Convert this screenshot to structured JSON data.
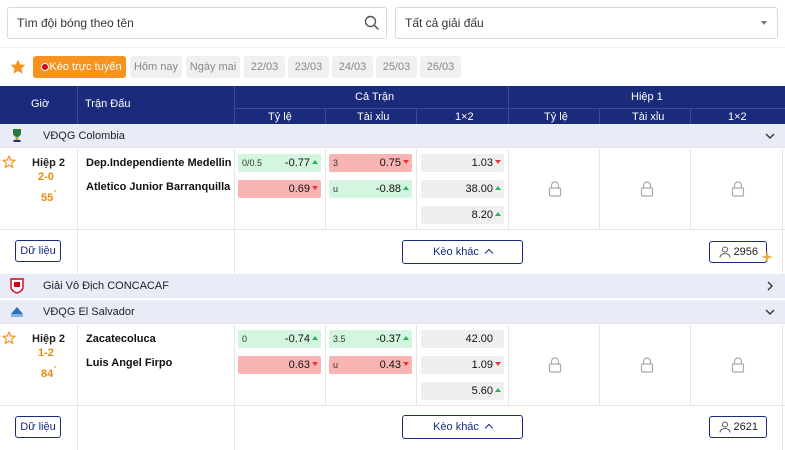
{
  "search": {
    "placeholder": "Tìm đội bóng theo tên"
  },
  "league_select": {
    "value": "Tất cả giải đấu"
  },
  "filters": {
    "live": "Kèo trực tuyến",
    "today": "Hôm nay",
    "tomorrow": "Ngày mai",
    "dates": [
      "22/03",
      "23/03",
      "24/03",
      "25/03",
      "26/03"
    ]
  },
  "header": {
    "time": "Giờ",
    "match": "Trận Đấu",
    "full": "Cả Trận",
    "half": "Hiệp 1",
    "handicap": "Tỷ lệ",
    "overunder": "Tài xỉu",
    "x12": "1×2"
  },
  "leagues": [
    {
      "name": "VĐQG Colombia"
    },
    {
      "name": "Giải Vô Địch CONCACAF"
    },
    {
      "name": "VĐQG El Salvador"
    }
  ],
  "matches": [
    {
      "period": "Hiệp 2",
      "score": "2-0",
      "minute": "55",
      "minute_mark": "'",
      "home": "Dep.Independiente Medellin",
      "away": "Atletico Junior Barranquilla",
      "hdp_line": "0/0.5",
      "hdp_home": "-0.77",
      "hdp_away": "0.69",
      "ou_line": "3",
      "ou_over": "0.75",
      "ou_under_label": "u",
      "ou_under": "-0.88",
      "x12_home": "1.03",
      "x12_away": "38.00",
      "x12_draw": "8.20",
      "data_btn": "Dữ liệu",
      "more_btn": "Kèo khác",
      "viewers": "2956"
    },
    {
      "period": "Hiệp 2",
      "score": "1-2",
      "minute": "84",
      "minute_mark": "'",
      "home": "Zacatecoluca",
      "away": "Luis Angel Firpo",
      "hdp_line": "0",
      "hdp_home": "-0.74",
      "hdp_away": "0.63",
      "ou_line": "3.5",
      "ou_over": "-0.37",
      "ou_under_label": "u",
      "ou_under": "0.43",
      "x12_home": "42.00",
      "x12_away": "1.09",
      "x12_draw": "5.60",
      "data_btn": "Dữ liệu",
      "more_btn": "Kèo khác",
      "viewers": "2621"
    }
  ],
  "colors": {
    "header": "#1b2b7b",
    "accent": "#f7931e",
    "score": "#e8890c",
    "up": "#2bb35a",
    "down": "#e53935"
  }
}
